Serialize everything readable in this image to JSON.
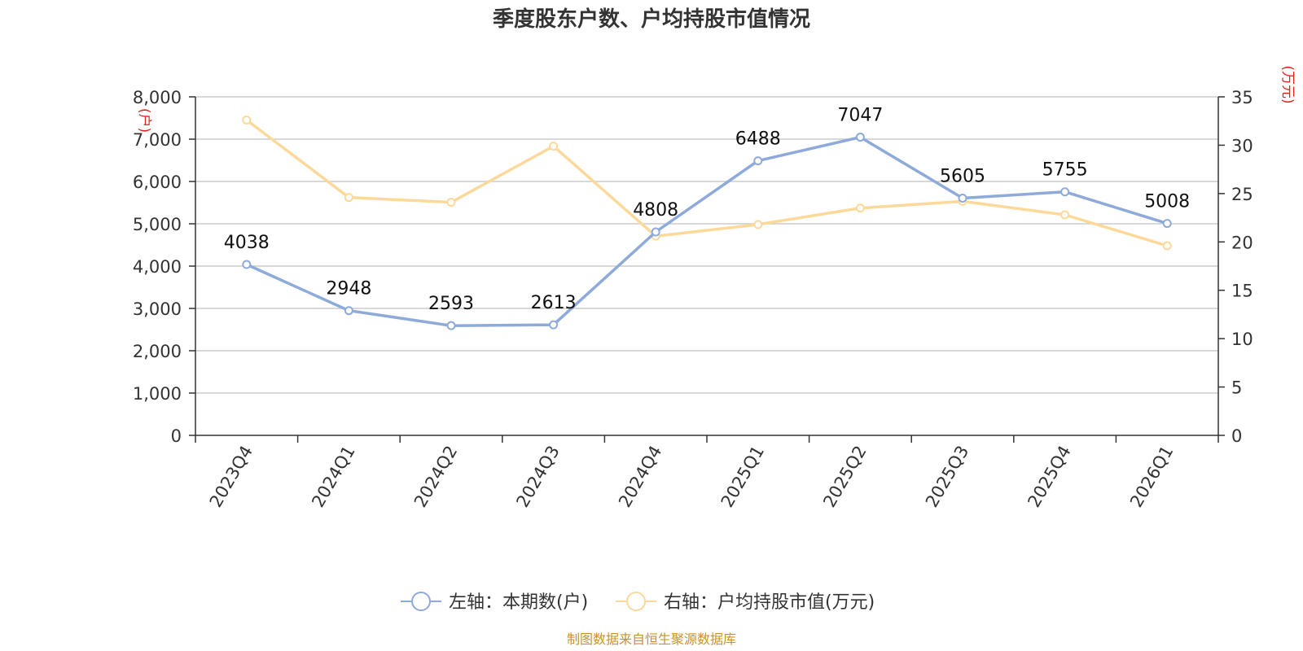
{
  "chart_data": {
    "type": "line",
    "title": "季度股东户数、户均持股市值情况",
    "categories": [
      "2023Q4",
      "2024Q1",
      "2024Q2",
      "2024Q3",
      "2024Q4",
      "2025Q1",
      "2025Q2",
      "2025Q3",
      "2025Q4",
      "2026Q1"
    ],
    "series": [
      {
        "name": "左轴：本期数(户)",
        "axis": "left",
        "color": "#8eaadb",
        "values": [
          4038,
          2948,
          2593,
          2613,
          4808,
          6488,
          7047,
          5605,
          5755,
          5008
        ],
        "labels": [
          "4038",
          "2948",
          "2593",
          "2613",
          "4808",
          "6488",
          "7047",
          "5605",
          "5755",
          "5008"
        ]
      },
      {
        "name": "右轴：户均持股市值(万元)",
        "axis": "right",
        "color": "#fcd99a",
        "values": [
          32.6,
          24.6,
          24.1,
          29.9,
          20.6,
          21.8,
          23.5,
          24.2,
          22.8,
          19.6
        ]
      }
    ],
    "left_axis": {
      "unit": "(户)",
      "ylim": [
        0,
        8000
      ],
      "ticks": [
        0,
        1000,
        2000,
        3000,
        4000,
        5000,
        6000,
        7000,
        8000
      ],
      "tick_labels": [
        "0",
        "1,000",
        "2,000",
        "3,000",
        "4,000",
        "5,000",
        "6,000",
        "7,000",
        "8,000"
      ]
    },
    "right_axis": {
      "unit": "(万元)",
      "ylim": [
        0,
        35
      ],
      "ticks": [
        0,
        5,
        10,
        15,
        20,
        25,
        30,
        35
      ],
      "tick_labels": [
        "0",
        "5",
        "10",
        "15",
        "20",
        "25",
        "30",
        "35"
      ]
    },
    "grid": true,
    "legend_position": "bottom-center",
    "source": "制图数据来自恒生聚源数据库"
  }
}
